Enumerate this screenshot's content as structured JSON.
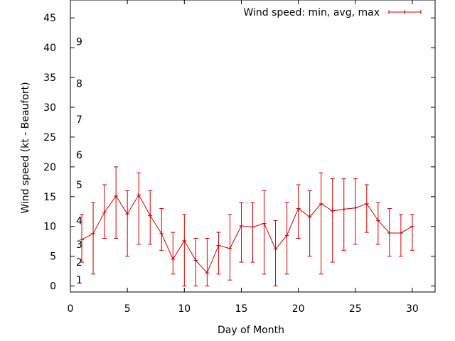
{
  "chart_data": {
    "type": "line",
    "xlabel": "Day of Month",
    "ylabel": "Wind speed (kt - Beaufort)",
    "xlim": [
      0,
      32
    ],
    "ylim": [
      -1,
      48
    ],
    "x_ticks": [
      0,
      5,
      10,
      15,
      20,
      25,
      30
    ],
    "y_ticks": [
      0,
      5,
      10,
      15,
      20,
      25,
      30,
      35,
      40,
      45
    ],
    "grid": false,
    "legend_position": "top-right",
    "beaufort_labels": [
      {
        "label": "1",
        "kt": 1
      },
      {
        "label": "2",
        "kt": 4
      },
      {
        "label": "3",
        "kt": 7
      },
      {
        "label": "4",
        "kt": 11
      },
      {
        "label": "5",
        "kt": 17
      },
      {
        "label": "6",
        "kt": 22
      },
      {
        "label": "7",
        "kt": 28
      },
      {
        "label": "8",
        "kt": 34
      },
      {
        "label": "9",
        "kt": 41
      }
    ],
    "series": [
      {
        "name": "Wind speed: min, avg, max",
        "color": "#cc0000",
        "x": [
          1,
          2,
          3,
          4,
          5,
          6,
          7,
          8,
          9,
          10,
          11,
          12,
          13,
          14,
          15,
          16,
          17,
          18,
          19,
          20,
          21,
          22,
          23,
          24,
          25,
          26,
          27,
          28,
          29,
          30
        ],
        "avg": [
          7.8,
          8.8,
          12.4,
          15.1,
          12.1,
          15.3,
          11.8,
          8.8,
          4.5,
          7.6,
          4.3,
          2.2,
          6.8,
          6.3,
          10.1,
          9.9,
          10.5,
          6.2,
          8.5,
          13,
          11.6,
          13.8,
          12.6,
          12.9,
          13.1,
          13.8,
          11,
          8.9,
          8.9,
          10
        ],
        "min": [
          4,
          2,
          8,
          8,
          5,
          7,
          7,
          6,
          2,
          0,
          0,
          0,
          2,
          1,
          4,
          4,
          2,
          0,
          2,
          8,
          5,
          2,
          4,
          6,
          7,
          9,
          7,
          5,
          5,
          6
        ],
        "max": [
          12,
          14,
          17,
          20,
          16,
          19,
          16,
          13,
          9,
          12,
          8,
          8,
          9,
          12,
          14,
          14,
          16,
          11,
          14,
          17,
          16,
          19,
          18,
          18,
          18,
          17,
          14,
          13,
          12,
          12
        ]
      }
    ]
  }
}
